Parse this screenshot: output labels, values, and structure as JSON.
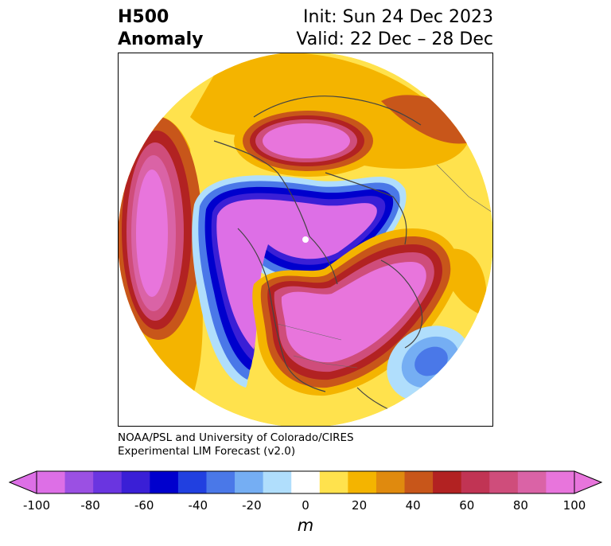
{
  "header": {
    "title_line1": "H500",
    "title_line2": "Anomaly",
    "init": "Init: Sun 24 Dec 2023",
    "valid": "Valid: 22 Dec – 28 Dec"
  },
  "credit": {
    "line1": "NOAA/PSL and University of Colorado/CIRES",
    "line2": "Experimental LIM Forecast (v2.0)"
  },
  "colorbar": {
    "unit": "m",
    "ticks": [
      "-100",
      "-80",
      "-60",
      "-40",
      "-20",
      "0",
      "20",
      "40",
      "60",
      "80",
      "100"
    ],
    "levels": [
      -100,
      -90,
      -80,
      -70,
      -60,
      -50,
      -40,
      -30,
      -20,
      -10,
      10,
      20,
      30,
      40,
      50,
      60,
      70,
      80,
      90,
      100
    ],
    "colors": [
      "#dd6fe6",
      "#9b50e3",
      "#6a35e0",
      "#3a1fd6",
      "#0000cd",
      "#2140e0",
      "#4a78e8",
      "#75aef3",
      "#b0defc",
      "#ffffff",
      "#ffe24d",
      "#f4b400",
      "#e08a0e",
      "#c8561a",
      "#b22222",
      "#c13454",
      "#cf4d7b",
      "#da63a6",
      "#e875dc"
    ]
  },
  "map": {
    "projection": "north-polar-stereographic",
    "variable": "500 hPa geopotential height anomaly"
  }
}
